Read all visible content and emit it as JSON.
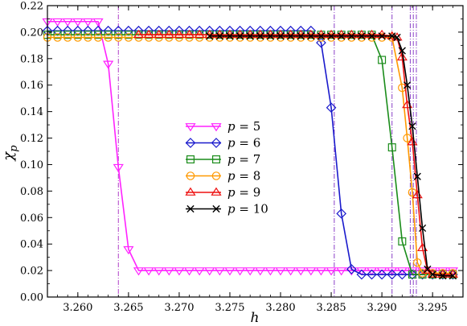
{
  "chart_data": {
    "type": "line",
    "xlabel": "h",
    "ylabel": "χ_p",
    "xlim": [
      3.257,
      3.298
    ],
    "ylim": [
      0.0,
      0.22
    ],
    "x_ticks": [
      3.26,
      3.265,
      3.27,
      3.275,
      3.28,
      3.285,
      3.29,
      3.295
    ],
    "x_tick_labels": [
      "3.260",
      "3.265",
      "3.270",
      "3.275",
      "3.280",
      "3.285",
      "3.290",
      "3.295"
    ],
    "y_ticks": [
      0.0,
      0.02,
      0.04,
      0.06,
      0.08,
      0.1,
      0.12,
      0.14,
      0.16,
      0.18,
      0.2,
      0.22
    ],
    "y_tick_labels": [
      "0.00",
      "0.02",
      "0.04",
      "0.06",
      "0.08",
      "0.10",
      "0.12",
      "0.14",
      "0.16",
      "0.18",
      "0.20",
      "0.22"
    ],
    "grid": false,
    "legend_position": "center",
    "vlines": [
      {
        "x": 3.264,
        "color": "#b040c8"
      },
      {
        "x": 3.2853,
        "color": "#8a40c8"
      },
      {
        "x": 3.291,
        "color": "#8a40c8"
      },
      {
        "x": 3.2928,
        "color": "#8a40c8"
      },
      {
        "x": 3.2931,
        "color": "#8a40c8"
      },
      {
        "x": 3.2934,
        "color": "#8a40c8"
      }
    ],
    "series": [
      {
        "name": "p = 5",
        "p": "5",
        "color": "#ff22ff",
        "marker": "triangle-down",
        "x": [
          3.257,
          3.258,
          3.259,
          3.26,
          3.261,
          3.262,
          3.263,
          3.264,
          3.265,
          3.266,
          3.267,
          3.268,
          3.269,
          3.27,
          3.271,
          3.272,
          3.273,
          3.274,
          3.275,
          3.276,
          3.277,
          3.278,
          3.279,
          3.28,
          3.281,
          3.282,
          3.283,
          3.284,
          3.285,
          3.286,
          3.287,
          3.288,
          3.289,
          3.29,
          3.291,
          3.292,
          3.293,
          3.294,
          3.295,
          3.296,
          3.297
        ],
        "y": [
          0.208,
          0.208,
          0.208,
          0.208,
          0.208,
          0.208,
          0.176,
          0.098,
          0.036,
          0.02,
          0.02,
          0.02,
          0.02,
          0.02,
          0.02,
          0.02,
          0.02,
          0.02,
          0.02,
          0.02,
          0.02,
          0.02,
          0.02,
          0.02,
          0.02,
          0.02,
          0.02,
          0.02,
          0.02,
          0.02,
          0.02,
          0.02,
          0.02,
          0.02,
          0.02,
          0.02,
          0.02,
          0.02,
          0.02,
          0.02,
          0.02
        ]
      },
      {
        "name": "p = 6",
        "p": "6",
        "color": "#1a1acc",
        "marker": "diamond",
        "x": [
          3.257,
          3.258,
          3.259,
          3.26,
          3.261,
          3.262,
          3.263,
          3.264,
          3.265,
          3.266,
          3.267,
          3.268,
          3.269,
          3.27,
          3.271,
          3.272,
          3.273,
          3.274,
          3.275,
          3.276,
          3.277,
          3.278,
          3.279,
          3.28,
          3.281,
          3.282,
          3.283,
          3.284,
          3.285,
          3.286,
          3.287,
          3.288,
          3.289,
          3.29,
          3.291,
          3.292,
          3.293,
          3.294,
          3.295,
          3.296,
          3.297
        ],
        "y": [
          0.201,
          0.201,
          0.201,
          0.201,
          0.201,
          0.201,
          0.201,
          0.201,
          0.201,
          0.201,
          0.201,
          0.201,
          0.201,
          0.201,
          0.201,
          0.201,
          0.201,
          0.201,
          0.201,
          0.201,
          0.201,
          0.201,
          0.201,
          0.201,
          0.201,
          0.201,
          0.201,
          0.192,
          0.143,
          0.063,
          0.021,
          0.017,
          0.017,
          0.017,
          0.017,
          0.017,
          0.017,
          0.017,
          0.017,
          0.017,
          0.017
        ]
      },
      {
        "name": "p = 7",
        "p": "7",
        "color": "#1a8c1a",
        "marker": "square",
        "x": [
          3.257,
          3.258,
          3.259,
          3.26,
          3.261,
          3.262,
          3.263,
          3.264,
          3.265,
          3.266,
          3.267,
          3.268,
          3.269,
          3.27,
          3.271,
          3.272,
          3.273,
          3.274,
          3.275,
          3.276,
          3.277,
          3.278,
          3.279,
          3.28,
          3.281,
          3.282,
          3.283,
          3.284,
          3.285,
          3.286,
          3.287,
          3.288,
          3.289,
          3.29,
          3.291,
          3.292,
          3.293,
          3.294,
          3.295,
          3.296,
          3.297
        ],
        "y": [
          0.198,
          0.198,
          0.198,
          0.198,
          0.198,
          0.198,
          0.198,
          0.198,
          0.198,
          0.198,
          0.198,
          0.198,
          0.198,
          0.198,
          0.198,
          0.198,
          0.198,
          0.198,
          0.198,
          0.198,
          0.198,
          0.198,
          0.198,
          0.198,
          0.198,
          0.198,
          0.198,
          0.198,
          0.198,
          0.198,
          0.198,
          0.198,
          0.198,
          0.179,
          0.113,
          0.042,
          0.017,
          0.017,
          0.017,
          0.017,
          0.017
        ]
      },
      {
        "name": "p = 8",
        "p": "8",
        "color": "#ff9900",
        "marker": "circle",
        "x": [
          3.257,
          3.258,
          3.259,
          3.26,
          3.261,
          3.262,
          3.263,
          3.264,
          3.265,
          3.266,
          3.267,
          3.268,
          3.269,
          3.27,
          3.271,
          3.272,
          3.273,
          3.274,
          3.275,
          3.276,
          3.277,
          3.278,
          3.279,
          3.28,
          3.281,
          3.282,
          3.283,
          3.284,
          3.285,
          3.286,
          3.287,
          3.288,
          3.289,
          3.29,
          3.291,
          3.292,
          3.2925,
          3.293,
          3.2935,
          3.294,
          3.295,
          3.296,
          3.297
        ],
        "y": [
          0.196,
          0.196,
          0.196,
          0.196,
          0.196,
          0.196,
          0.196,
          0.196,
          0.196,
          0.196,
          0.196,
          0.196,
          0.196,
          0.196,
          0.196,
          0.196,
          0.196,
          0.196,
          0.196,
          0.196,
          0.196,
          0.196,
          0.196,
          0.196,
          0.196,
          0.196,
          0.196,
          0.196,
          0.196,
          0.196,
          0.196,
          0.196,
          0.196,
          0.196,
          0.196,
          0.158,
          0.12,
          0.079,
          0.026,
          0.018,
          0.018,
          0.018,
          0.018
        ]
      },
      {
        "name": "p = 9",
        "p": "9",
        "color": "#ee1111",
        "marker": "triangle-up",
        "x": [
          3.266,
          3.267,
          3.268,
          3.269,
          3.27,
          3.271,
          3.272,
          3.273,
          3.274,
          3.275,
          3.276,
          3.277,
          3.278,
          3.279,
          3.28,
          3.281,
          3.282,
          3.283,
          3.284,
          3.285,
          3.286,
          3.287,
          3.288,
          3.289,
          3.29,
          3.291,
          3.2915,
          3.292,
          3.2925,
          3.293,
          3.2935,
          3.294,
          3.2945,
          3.295,
          3.296,
          3.297
        ],
        "y": [
          0.198,
          0.198,
          0.198,
          0.198,
          0.198,
          0.198,
          0.198,
          0.198,
          0.198,
          0.198,
          0.198,
          0.198,
          0.198,
          0.198,
          0.198,
          0.198,
          0.198,
          0.198,
          0.198,
          0.198,
          0.198,
          0.198,
          0.198,
          0.198,
          0.198,
          0.197,
          0.196,
          0.181,
          0.145,
          0.117,
          0.077,
          0.037,
          0.02,
          0.017,
          0.017,
          0.017
        ]
      },
      {
        "name": "p = 10",
        "p": "10",
        "color": "#000000",
        "marker": "x",
        "x": [
          3.273,
          3.274,
          3.275,
          3.276,
          3.277,
          3.278,
          3.279,
          3.28,
          3.281,
          3.282,
          3.283,
          3.284,
          3.285,
          3.286,
          3.287,
          3.288,
          3.289,
          3.29,
          3.291,
          3.2915,
          3.292,
          3.2925,
          3.293,
          3.2935,
          3.294,
          3.2945,
          3.295,
          3.296,
          3.297
        ],
        "y": [
          0.197,
          0.197,
          0.197,
          0.197,
          0.197,
          0.197,
          0.197,
          0.197,
          0.197,
          0.197,
          0.197,
          0.197,
          0.197,
          0.197,
          0.197,
          0.197,
          0.197,
          0.197,
          0.197,
          0.196,
          0.186,
          0.16,
          0.129,
          0.091,
          0.052,
          0.021,
          0.017,
          0.016,
          0.016
        ]
      }
    ]
  }
}
